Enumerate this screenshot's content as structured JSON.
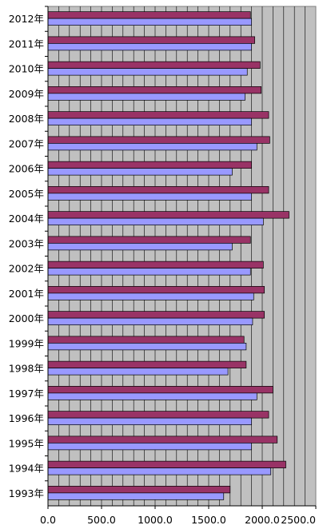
{
  "chart_data": {
    "type": "bar",
    "orientation": "horizontal",
    "categories": [
      "2012年",
      "2011年",
      "2010年",
      "2009年",
      "2008年",
      "2007年",
      "2006年",
      "2005年",
      "2004年",
      "2003年",
      "2002年",
      "2001年",
      "2000年",
      "1999年",
      "1998年",
      "1997年",
      "1996年",
      "1995年",
      "1994年",
      "1993年"
    ],
    "series": [
      {
        "values": [
          1890,
          1930,
          1980,
          1990,
          2060,
          2070,
          1900,
          2060,
          2250,
          1890,
          2010,
          2020,
          2020,
          1830,
          1850,
          2100,
          2060,
          2140,
          2220,
          1700
        ]
      },
      {
        "values": [
          1900,
          1900,
          1860,
          1840,
          1900,
          1950,
          1720,
          1900,
          2010,
          1720,
          1890,
          1920,
          1910,
          1850,
          1680,
          1950,
          1900,
          1900,
          2080,
          1640
        ]
      }
    ],
    "series_colors": [
      "#993366",
      "#9999ff"
    ],
    "xlim": [
      0,
      2500
    ],
    "xticks": [
      "0.0",
      "500.0",
      "1000.0",
      "1500.0",
      "2000.0",
      "2500.0"
    ],
    "grid": true,
    "plot_background": "#c0c0c0",
    "legend": "none",
    "title": "",
    "xlabel": "",
    "ylabel": ""
  }
}
